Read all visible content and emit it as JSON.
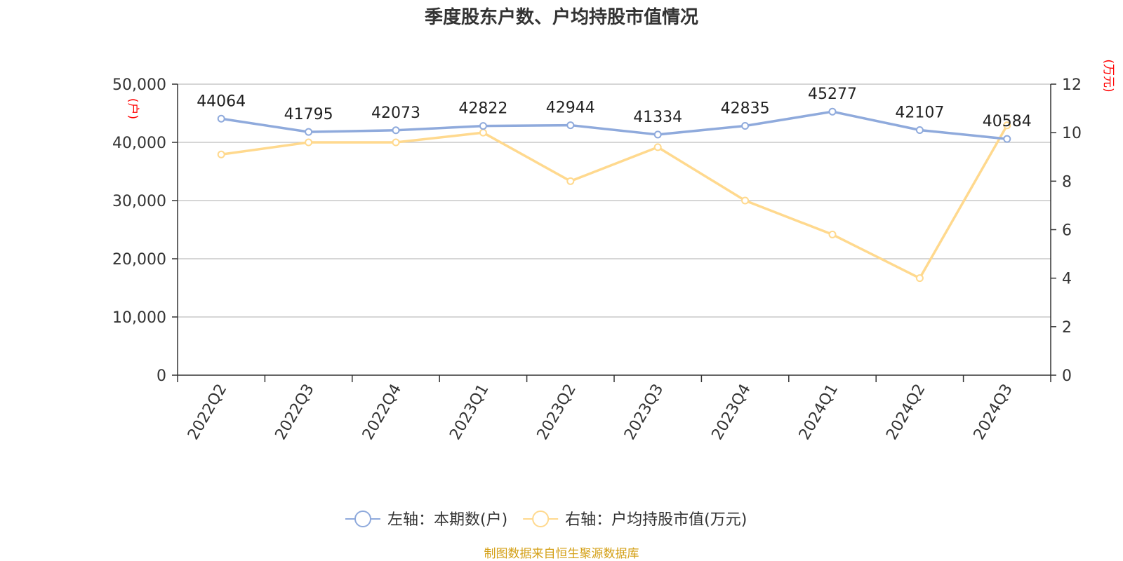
{
  "source_note": "制图数据来自恒生聚源数据库",
  "chart_data": {
    "type": "line",
    "title": "季度股东户数、户均持股市值情况",
    "categories": [
      "2022Q2",
      "2022Q3",
      "2022Q4",
      "2023Q1",
      "2023Q2",
      "2023Q3",
      "2023Q4",
      "2024Q1",
      "2024Q2",
      "2024Q3"
    ],
    "left_axis": {
      "name": "(户)",
      "min": 0,
      "max": 50000,
      "ticks": [
        0,
        10000,
        20000,
        30000,
        40000,
        50000
      ],
      "tick_labels": [
        "0",
        "10,000",
        "20,000",
        "30,000",
        "40,000",
        "50,000"
      ]
    },
    "right_axis": {
      "name": "(万元)",
      "min": 0,
      "max": 12,
      "ticks": [
        0,
        2,
        4,
        6,
        8,
        10,
        12
      ],
      "tick_labels": [
        "0",
        "2",
        "4",
        "6",
        "8",
        "10",
        "12"
      ]
    },
    "grid": true,
    "legend_position": "bottom",
    "series": [
      {
        "name": "左轴：本期数(户)",
        "axis": "left",
        "color": "#8faadc",
        "values": [
          44064,
          41795,
          42073,
          42822,
          42944,
          41334,
          42835,
          45277,
          42107,
          40584
        ],
        "data_labels": [
          "44064",
          "41795",
          "42073",
          "42822",
          "42944",
          "41334",
          "42835",
          "45277",
          "42107",
          "40584"
        ]
      },
      {
        "name": "右轴：户均持股市值(万元)",
        "axis": "right",
        "color": "#ffd98e",
        "values": [
          9.1,
          9.6,
          9.6,
          10.0,
          8.0,
          9.4,
          7.2,
          5.8,
          4.0,
          10.3
        ]
      }
    ]
  }
}
